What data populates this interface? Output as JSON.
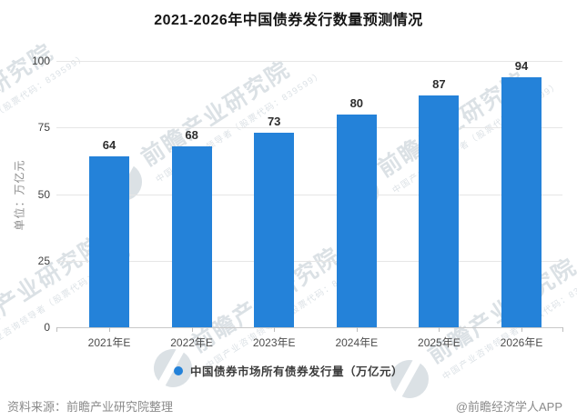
{
  "title": "2021-2026年中国债券发行数量预测情况",
  "y_axis": {
    "unit_label": "单位：万亿元"
  },
  "legend": {
    "label": "中国债券市场所有债券发行量（万亿元）"
  },
  "footer": {
    "source": "资料来源：前瞻产业研究院整理",
    "brand": "@前瞻经济学人APP"
  },
  "watermark": {
    "text": "前瞻产业研究院",
    "subtext": "中国产业咨询领导者（股票代码：839599）",
    "logo": "qianzhan-circle-swoosh-icon"
  },
  "colors": {
    "bar": "#2482d9",
    "grid": "#e6e6e6",
    "axis": "#c9c9c9",
    "watermark": "#b9c4cd"
  },
  "chart_data": {
    "type": "bar",
    "title": "2021-2026年中国债券发行数量预测情况",
    "categories": [
      "2021年E",
      "2022年E",
      "2023年E",
      "2024年E",
      "2025年E",
      "2026年E"
    ],
    "values": [
      64,
      68,
      73,
      80,
      87,
      94
    ],
    "series_name": "中国债券市场所有债券发行量（万亿元）",
    "xlabel": "",
    "ylabel": "单位：万亿元",
    "ylim": [
      0,
      100
    ],
    "yticks": [
      0,
      25,
      50,
      75,
      100
    ],
    "grid": true,
    "legend_position": "bottom",
    "value_labels": true
  }
}
